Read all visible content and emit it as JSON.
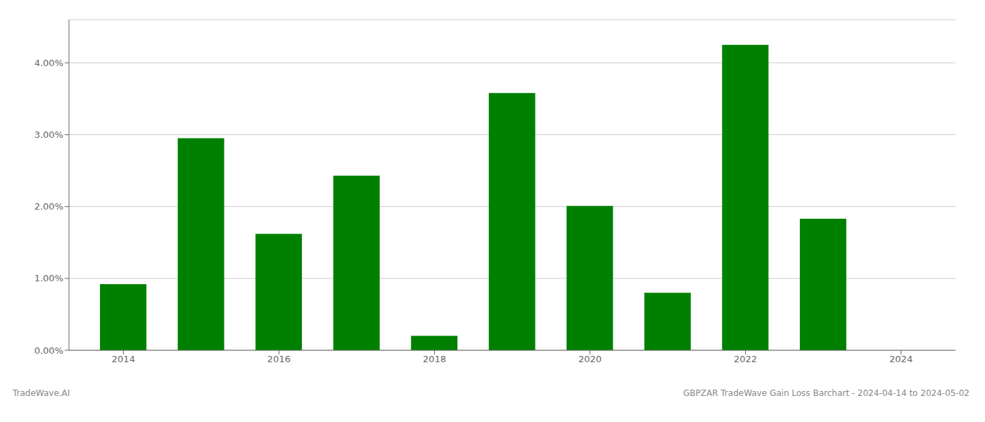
{
  "chart_data": {
    "type": "bar",
    "title": "GBPZAR TradeWave Gain Loss Barchart - 2024-04-14 to 2024-05-02",
    "annotations": [
      "TradeWave.AI"
    ],
    "x": [
      2014,
      2015,
      2016,
      2017,
      2018,
      2019,
      2020,
      2021,
      2022,
      2023
    ],
    "values": [
      0.0092,
      0.0295,
      0.0162,
      0.0243,
      0.002,
      0.0358,
      0.0201,
      0.008,
      0.0425,
      0.0183
    ],
    "color": "#008000",
    "xlim": [
      2013.3,
      2024.7
    ],
    "xticks": [
      2014,
      2016,
      2018,
      2020,
      2022,
      2024
    ],
    "ylim": [
      0,
      0.046
    ],
    "yticks": [
      {
        "value": 0,
        "label": "0.00%"
      },
      {
        "value": 0.01,
        "label": "1.00%"
      },
      {
        "value": 0.02,
        "label": "2.00%"
      },
      {
        "value": 0.03,
        "label": "3.00%"
      },
      {
        "value": 0.04,
        "label": "4.00%"
      }
    ],
    "grid": true
  }
}
